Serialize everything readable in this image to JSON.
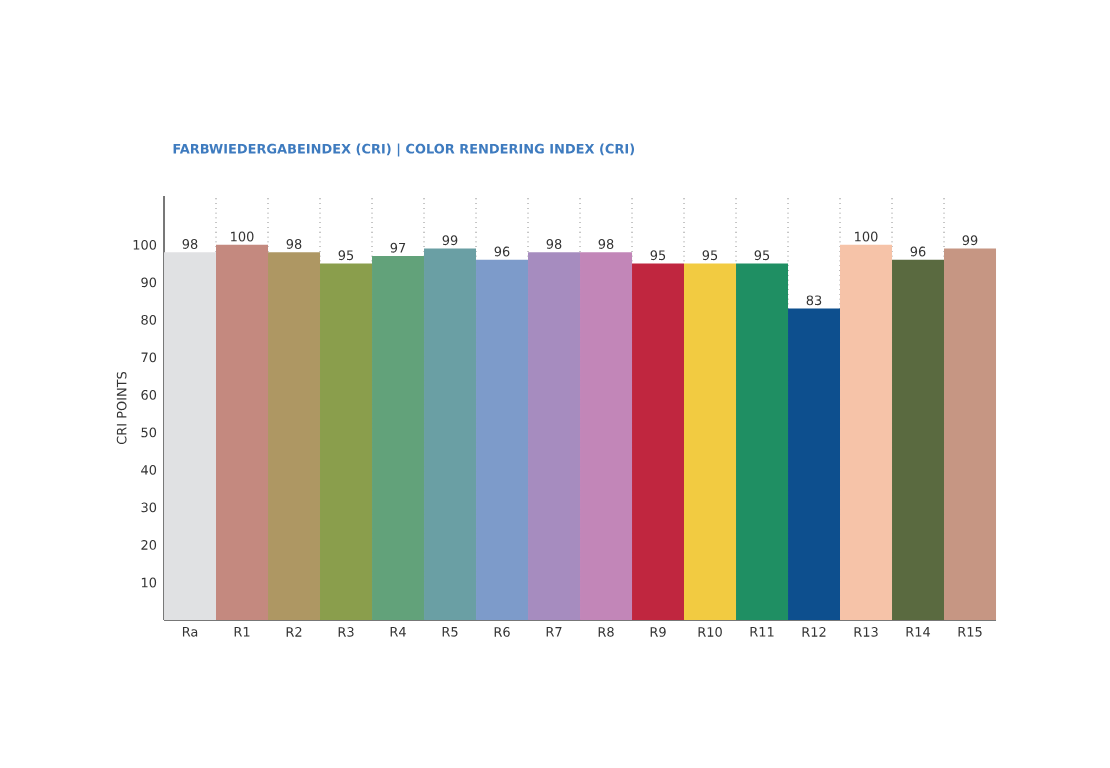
{
  "chart_data": {
    "type": "bar",
    "title": "FARBWIEDERGABEINDEX (CRI) | COLOR RENDERING INDEX (CRI)",
    "ylabel": "CRI POINTS",
    "categories": [
      "Ra",
      "R1",
      "R2",
      "R3",
      "R4",
      "R5",
      "R6",
      "R7",
      "R8",
      "R9",
      "R10",
      "R11",
      "R12",
      "R13",
      "R14",
      "R15"
    ],
    "values": [
      98,
      100,
      98,
      95,
      97,
      99,
      96,
      98,
      98,
      95,
      95,
      95,
      83,
      100,
      96,
      99
    ],
    "colors": [
      "#e0e1e3",
      "#c4897f",
      "#ae9763",
      "#8a9e4c",
      "#62a27a",
      "#6a9fa4",
      "#7d9bca",
      "#a68cbf",
      "#c286b8",
      "#c0263f",
      "#f2cb41",
      "#1f8f63",
      "#0d4f8e",
      "#f6c3a8",
      "#5a6a40",
      "#c69683"
    ],
    "ylim": [
      0,
      113
    ],
    "yticks": [
      10,
      20,
      30,
      40,
      50,
      60,
      70,
      80,
      90,
      100
    ],
    "data_labels": true,
    "grid": "x"
  }
}
